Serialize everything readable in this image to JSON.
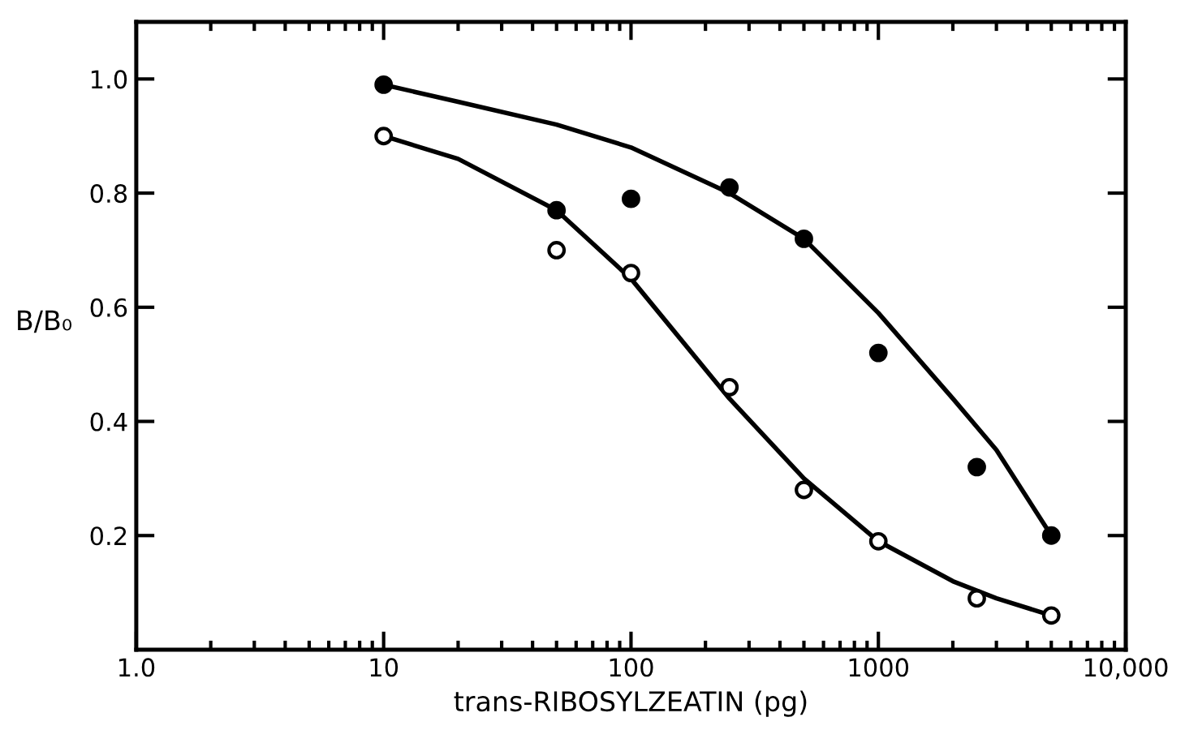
{
  "chart_data": {
    "type": "scatter",
    "xlabel": "trans-RIBOSYLZEATIN (pg)",
    "ylabel": "B/B₀",
    "log": "x",
    "xlim": [
      1,
      10000
    ],
    "xticks": [
      {
        "value": 1,
        "label": "1.0"
      },
      10,
      100,
      1000,
      {
        "value": 10000,
        "label": "10,000"
      }
    ],
    "ylim": [
      0,
      1.1
    ],
    "yticks": [
      0.2,
      0.4,
      0.6,
      0.8,
      {
        "value": 1.0,
        "label": "1.0"
      }
    ],
    "grid": false,
    "series": [
      {
        "color": "#000000",
        "marker": "circle",
        "x": [
          10,
          50,
          100,
          250,
          500,
          1000,
          2500,
          5000
        ],
        "values": [
          0.99,
          0.77,
          0.79,
          0.81,
          0.72,
          0.52,
          0.32,
          0.2
        ]
      },
      {
        "color": "#ffffff",
        "marker": "circle",
        "x": [
          10,
          50,
          100,
          250,
          500,
          1000,
          2500,
          5000
        ],
        "values": [
          0.9,
          0.7,
          0.66,
          0.46,
          0.28,
          0.19,
          0.09,
          0.06
        ]
      },
      {
        "type": "line",
        "color": "#000000",
        "marker": "none",
        "line_style": "solid",
        "x": [
          10,
          20,
          50,
          100,
          250,
          500,
          1000,
          2000,
          3000,
          5000
        ],
        "values": [
          0.99,
          0.96,
          0.92,
          0.88,
          0.8,
          0.72,
          0.59,
          0.44,
          0.35,
          0.2
        ]
      },
      {
        "type": "line",
        "color": "#000000",
        "marker": "none",
        "line_style": "solid",
        "x": [
          10,
          20,
          50,
          100,
          250,
          500,
          1000,
          2000,
          3000,
          5000
        ],
        "values": [
          0.9,
          0.86,
          0.77,
          0.65,
          0.44,
          0.3,
          0.19,
          0.12,
          0.09,
          0.06
        ]
      }
    ]
  }
}
